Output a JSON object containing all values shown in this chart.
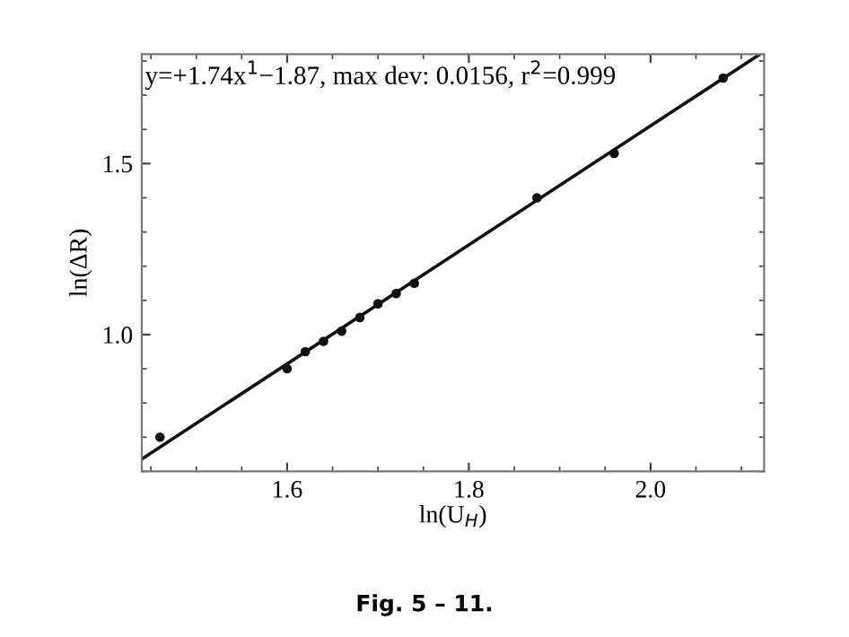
{
  "chart_data": {
    "type": "scatter",
    "xlabel": "ln(U$_{H}$)",
    "ylabel": "ln(ΔR)",
    "annotations": [
      "y=+1.74x$^{1}$−1.87, max dev: 0.0156, r$^{2}$=0.999",
      "Fig. 5 – 11."
    ],
    "series": [
      {
        "color": "#111111",
        "marker": "circle",
        "x": [
          1.46,
          1.6,
          1.62,
          1.64,
          1.66,
          1.68,
          1.7,
          1.72,
          1.74,
          1.875,
          1.96,
          2.08
        ],
        "values": [
          0.7,
          0.9,
          0.95,
          0.98,
          1.01,
          1.05,
          1.09,
          1.12,
          1.15,
          1.4,
          1.53,
          1.75
        ]
      },
      {
        "type": "line",
        "marker": "none",
        "color": "#111111",
        "x": [
          1.44,
          2.12
        ],
        "values": [
          0.636,
          1.819
        ]
      }
    ],
    "xlim": [
      1.44,
      2.125
    ],
    "ylim": [
      0.6,
      1.82
    ],
    "xticks": [
      1.6,
      1.8,
      {
        "value": 2,
        "label": "2.0"
      }
    ],
    "yticks": [
      {
        "value": 1,
        "label": "1.0"
      },
      1.5
    ],
    "grid": false,
    "legend": false,
    "line_style": "solid"
  }
}
